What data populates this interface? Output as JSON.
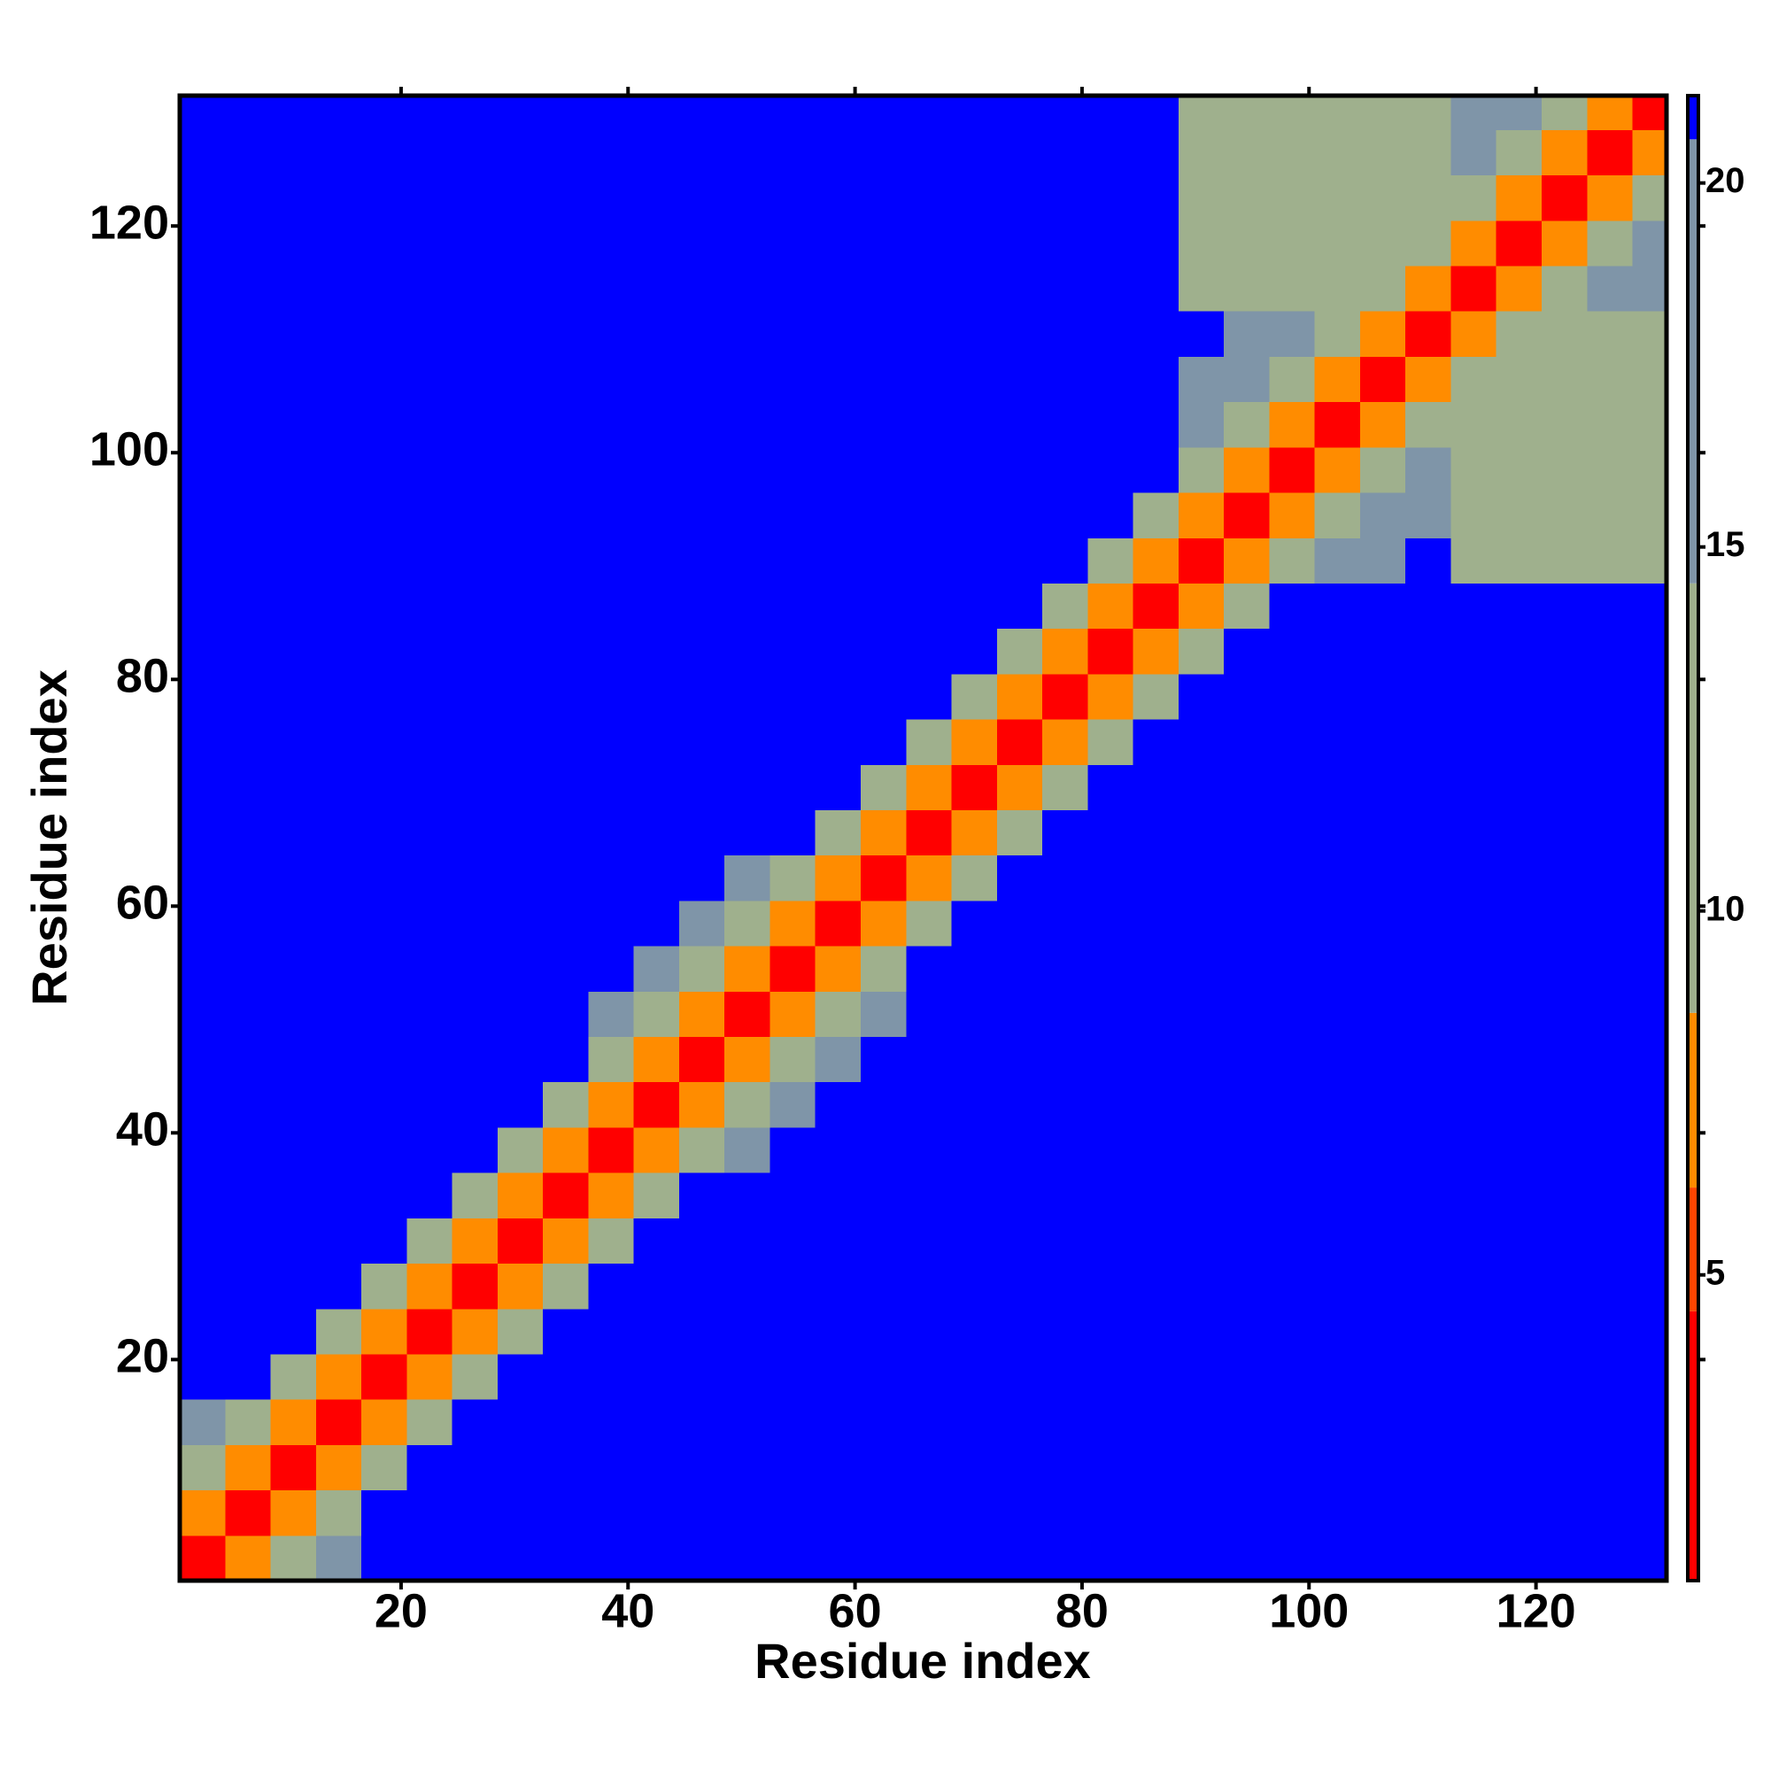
{
  "chart_data": {
    "type": "heatmap",
    "xlabel": "Residue index",
    "ylabel": "Residue index",
    "xlim": [
      0.5,
      131.5
    ],
    "ylim": [
      0.5,
      131.5
    ],
    "xticks": [
      20,
      40,
      60,
      80,
      100,
      120
    ],
    "yticks": [
      20,
      40,
      60,
      80,
      100,
      120
    ],
    "x_edges": [
      0.5,
      4.5,
      8.5,
      12.5,
      16.5,
      20.5,
      24.5,
      28.5,
      32.5,
      36.5,
      40.5,
      44.5,
      48.5,
      52.5,
      56.5,
      60.5,
      64.5,
      68.5,
      72.5,
      76.5,
      80.5,
      84.5,
      88.5,
      92.5,
      96.5,
      100.5,
      104.5,
      108.5,
      112.5,
      116.5,
      120.5,
      124.5,
      128.5,
      131.5
    ],
    "y_edges": [
      0.5,
      4.5,
      8.5,
      12.5,
      16.5,
      20.5,
      24.5,
      28.5,
      32.5,
      36.5,
      40.5,
      44.5,
      48.5,
      52.5,
      56.5,
      60.5,
      64.5,
      68.5,
      72.5,
      76.5,
      80.5,
      84.5,
      88.5,
      92.5,
      96.5,
      100.5,
      104.5,
      108.5,
      112.5,
      116.5,
      120.5,
      124.5,
      128.5,
      131.5
    ],
    "zlim": [
      0.8,
      21.2
    ],
    "zticks": [
      5,
      10,
      15,
      20
    ],
    "color_edges": [
      0.8,
      4.5,
      6.2,
      8.6,
      14.5,
      20.6,
      21.2
    ],
    "colors": [
      "#ff0000",
      "#ff4500",
      "#ff8c00",
      "#9fb08d",
      "#7f95a8",
      "#0000ff"
    ],
    "values": [
      [
        2,
        7,
        13,
        16,
        21,
        21,
        21,
        21,
        21,
        21,
        21,
        21,
        21,
        21,
        21,
        21,
        21,
        21,
        21,
        21,
        21,
        21,
        21,
        21,
        21,
        21,
        21,
        21,
        21,
        21,
        21,
        21,
        21
      ],
      [
        7,
        2,
        7,
        13,
        21,
        21,
        21,
        21,
        21,
        21,
        21,
        21,
        21,
        21,
        21,
        21,
        21,
        21,
        21,
        21,
        21,
        21,
        21,
        21,
        21,
        21,
        21,
        21,
        21,
        21,
        21,
        21,
        21
      ],
      [
        13,
        7,
        2,
        7,
        13,
        21,
        21,
        21,
        21,
        21,
        21,
        21,
        21,
        21,
        21,
        21,
        21,
        21,
        21,
        21,
        21,
        21,
        21,
        21,
        21,
        21,
        21,
        21,
        21,
        21,
        21,
        21,
        21
      ],
      [
        16,
        13,
        7,
        2,
        7,
        13,
        21,
        21,
        21,
        21,
        21,
        21,
        21,
        21,
        21,
        21,
        21,
        21,
        21,
        21,
        21,
        21,
        21,
        21,
        21,
        21,
        21,
        21,
        21,
        21,
        21,
        21,
        21
      ],
      [
        21,
        21,
        13,
        7,
        2,
        7,
        13,
        21,
        21,
        21,
        21,
        21,
        21,
        21,
        21,
        21,
        21,
        21,
        21,
        21,
        21,
        21,
        21,
        21,
        21,
        21,
        21,
        21,
        21,
        21,
        21,
        21,
        21
      ],
      [
        21,
        21,
        21,
        13,
        7,
        2,
        7,
        13,
        21,
        21,
        21,
        21,
        21,
        21,
        21,
        21,
        21,
        21,
        21,
        21,
        21,
        21,
        21,
        21,
        21,
        21,
        21,
        21,
        21,
        21,
        21,
        21,
        21
      ],
      [
        21,
        21,
        21,
        21,
        13,
        7,
        2,
        7,
        13,
        21,
        21,
        21,
        21,
        21,
        21,
        21,
        21,
        21,
        21,
        21,
        21,
        21,
        21,
        21,
        21,
        21,
        21,
        21,
        21,
        21,
        21,
        21,
        21
      ],
      [
        21,
        21,
        21,
        21,
        21,
        13,
        7,
        2,
        7,
        13,
        21,
        21,
        21,
        21,
        21,
        21,
        21,
        21,
        21,
        21,
        21,
        21,
        21,
        21,
        21,
        21,
        21,
        21,
        21,
        21,
        21,
        21,
        21
      ],
      [
        21,
        21,
        21,
        21,
        21,
        21,
        13,
        7,
        2,
        7,
        13,
        21,
        21,
        21,
        21,
        21,
        21,
        21,
        21,
        21,
        21,
        21,
        21,
        21,
        21,
        21,
        21,
        21,
        21,
        21,
        21,
        21,
        21
      ],
      [
        21,
        21,
        21,
        21,
        21,
        21,
        21,
        13,
        7,
        2,
        7,
        13,
        16,
        21,
        21,
        21,
        21,
        21,
        21,
        21,
        21,
        21,
        21,
        21,
        21,
        21,
        21,
        21,
        21,
        21,
        21,
        21,
        21
      ],
      [
        21,
        21,
        21,
        21,
        21,
        21,
        21,
        21,
        13,
        7,
        2,
        7,
        13,
        16,
        21,
        21,
        21,
        21,
        21,
        21,
        21,
        21,
        21,
        21,
        21,
        21,
        21,
        21,
        21,
        21,
        21,
        21,
        21
      ],
      [
        21,
        21,
        21,
        21,
        21,
        21,
        21,
        21,
        21,
        13,
        7,
        2,
        7,
        13,
        16,
        21,
        21,
        21,
        21,
        21,
        21,
        21,
        21,
        21,
        21,
        21,
        21,
        21,
        21,
        21,
        21,
        21,
        21
      ],
      [
        21,
        21,
        21,
        21,
        21,
        21,
        21,
        21,
        21,
        16,
        13,
        7,
        2,
        7,
        13,
        16,
        21,
        21,
        21,
        21,
        21,
        21,
        21,
        21,
        21,
        21,
        21,
        21,
        21,
        21,
        21,
        21,
        21
      ],
      [
        21,
        21,
        21,
        21,
        21,
        21,
        21,
        21,
        21,
        21,
        16,
        13,
        7,
        2,
        7,
        13,
        21,
        21,
        21,
        21,
        21,
        21,
        21,
        21,
        21,
        21,
        21,
        21,
        21,
        21,
        21,
        21,
        21
      ],
      [
        21,
        21,
        21,
        21,
        21,
        21,
        21,
        21,
        21,
        21,
        21,
        16,
        13,
        7,
        2,
        7,
        13,
        21,
        21,
        21,
        21,
        21,
        21,
        21,
        21,
        21,
        21,
        21,
        21,
        21,
        21,
        21,
        21
      ],
      [
        21,
        21,
        21,
        21,
        21,
        21,
        21,
        21,
        21,
        21,
        21,
        21,
        16,
        13,
        7,
        2,
        7,
        13,
        21,
        21,
        21,
        21,
        21,
        21,
        21,
        21,
        21,
        21,
        21,
        21,
        21,
        21,
        21
      ],
      [
        21,
        21,
        21,
        21,
        21,
        21,
        21,
        21,
        21,
        21,
        21,
        21,
        21,
        21,
        13,
        7,
        2,
        7,
        13,
        21,
        21,
        21,
        21,
        21,
        21,
        21,
        21,
        21,
        21,
        21,
        21,
        21,
        21
      ],
      [
        21,
        21,
        21,
        21,
        21,
        21,
        21,
        21,
        21,
        21,
        21,
        21,
        21,
        21,
        21,
        13,
        7,
        2,
        7,
        13,
        21,
        21,
        21,
        21,
        21,
        21,
        21,
        21,
        21,
        21,
        21,
        21,
        21
      ],
      [
        21,
        21,
        21,
        21,
        21,
        21,
        21,
        21,
        21,
        21,
        21,
        21,
        21,
        21,
        21,
        21,
        13,
        7,
        2,
        7,
        13,
        21,
        21,
        21,
        21,
        21,
        21,
        21,
        21,
        21,
        21,
        21,
        21
      ],
      [
        21,
        21,
        21,
        21,
        21,
        21,
        21,
        21,
        21,
        21,
        21,
        21,
        21,
        21,
        21,
        21,
        21,
        13,
        7,
        2,
        7,
        13,
        21,
        21,
        21,
        21,
        21,
        21,
        21,
        21,
        21,
        21,
        21
      ],
      [
        21,
        21,
        21,
        21,
        21,
        21,
        21,
        21,
        21,
        21,
        21,
        21,
        21,
        21,
        21,
        21,
        21,
        21,
        13,
        7,
        2,
        7,
        13,
        21,
        21,
        21,
        21,
        21,
        21,
        21,
        21,
        21,
        21
      ],
      [
        21,
        21,
        21,
        21,
        21,
        21,
        21,
        21,
        21,
        21,
        21,
        21,
        21,
        21,
        21,
        21,
        21,
        21,
        21,
        13,
        7,
        2,
        7,
        13,
        21,
        21,
        21,
        21,
        21,
        21,
        21,
        21,
        21
      ],
      [
        21,
        21,
        21,
        21,
        21,
        21,
        21,
        21,
        21,
        21,
        21,
        21,
        21,
        21,
        21,
        21,
        21,
        21,
        21,
        21,
        13,
        7,
        2,
        7,
        13,
        15,
        18,
        21,
        14,
        14,
        14,
        14,
        14
      ],
      [
        21,
        21,
        21,
        21,
        21,
        21,
        21,
        21,
        21,
        21,
        21,
        21,
        21,
        21,
        21,
        21,
        21,
        21,
        21,
        21,
        21,
        13,
        7,
        2,
        7,
        13,
        15,
        18,
        14,
        14,
        14,
        14,
        14
      ],
      [
        21,
        21,
        21,
        21,
        21,
        21,
        21,
        21,
        21,
        21,
        21,
        21,
        21,
        21,
        21,
        21,
        21,
        21,
        21,
        21,
        21,
        21,
        13,
        7,
        2,
        7,
        13,
        15,
        14,
        14,
        14,
        14,
        14
      ],
      [
        21,
        21,
        21,
        21,
        21,
        21,
        21,
        21,
        21,
        21,
        21,
        21,
        21,
        21,
        21,
        21,
        21,
        21,
        21,
        21,
        21,
        21,
        15,
        13,
        7,
        2,
        7,
        13,
        14,
        14,
        14,
        14,
        14
      ],
      [
        21,
        21,
        21,
        21,
        21,
        21,
        21,
        21,
        21,
        21,
        21,
        21,
        21,
        21,
        21,
        21,
        21,
        21,
        21,
        21,
        21,
        21,
        18,
        15,
        13,
        7,
        2,
        7,
        13,
        14,
        14,
        14,
        14
      ],
      [
        21,
        21,
        21,
        21,
        21,
        21,
        21,
        21,
        21,
        21,
        21,
        21,
        21,
        21,
        21,
        21,
        21,
        21,
        21,
        21,
        21,
        21,
        21,
        18,
        15,
        13,
        7,
        2,
        7,
        13,
        14,
        14,
        14
      ],
      [
        21,
        21,
        21,
        21,
        21,
        21,
        21,
        21,
        21,
        21,
        21,
        21,
        21,
        21,
        21,
        21,
        21,
        21,
        21,
        21,
        21,
        21,
        14,
        14,
        14,
        14,
        13,
        7,
        2,
        7,
        13,
        15,
        18
      ],
      [
        21,
        21,
        21,
        21,
        21,
        21,
        21,
        21,
        21,
        21,
        21,
        21,
        21,
        21,
        21,
        21,
        21,
        21,
        21,
        21,
        21,
        21,
        14,
        14,
        14,
        14,
        14,
        13,
        7,
        2,
        7,
        13,
        15
      ],
      [
        21,
        21,
        21,
        21,
        21,
        21,
        21,
        21,
        21,
        21,
        21,
        21,
        21,
        21,
        21,
        21,
        21,
        21,
        21,
        21,
        21,
        21,
        14,
        14,
        14,
        14,
        14,
        14,
        13,
        7,
        2,
        7,
        13
      ],
      [
        21,
        21,
        21,
        21,
        21,
        21,
        21,
        21,
        21,
        21,
        21,
        21,
        21,
        21,
        21,
        21,
        21,
        21,
        21,
        21,
        21,
        21,
        14,
        14,
        14,
        14,
        14,
        14,
        15,
        13,
        7,
        2,
        7
      ],
      [
        21,
        21,
        21,
        21,
        21,
        21,
        21,
        21,
        21,
        21,
        21,
        21,
        21,
        21,
        21,
        21,
        21,
        21,
        21,
        21,
        21,
        21,
        14,
        14,
        14,
        14,
        14,
        14,
        18,
        15,
        13,
        7,
        2
      ]
    ]
  }
}
